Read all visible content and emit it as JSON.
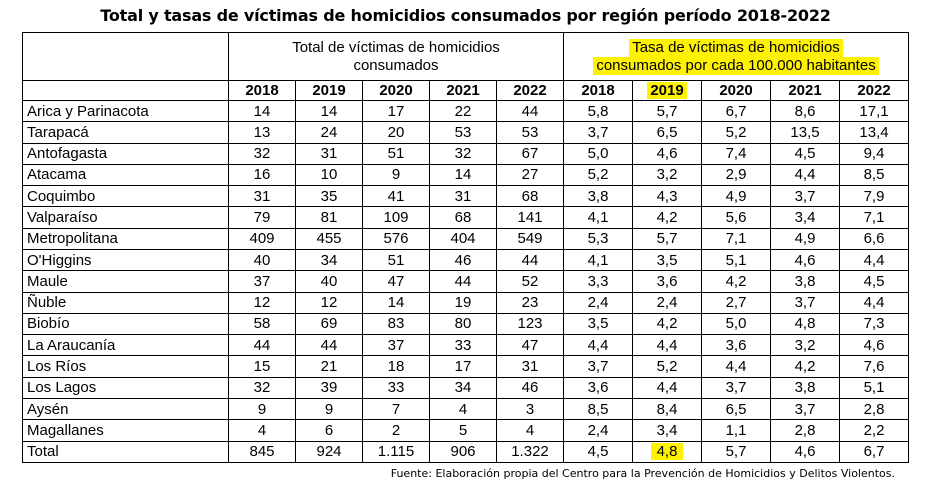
{
  "title": "Total y tasas de víctimas de homicidios consumados por región período 2018-2022",
  "group_totals": [
    "Total de víctimas de homicidios",
    "consumados"
  ],
  "group_rates": [
    "Tasa de víctimas de homicidios",
    "consumados por cada 100.000 habitantes"
  ],
  "years": [
    "2018",
    "2019",
    "2020",
    "2021",
    "2022"
  ],
  "rows": [
    {
      "region": "Arica y Parinacota",
      "totals": [
        "14",
        "14",
        "17",
        "22",
        "44"
      ],
      "rates": [
        "5,8",
        "5,7",
        "6,7",
        "8,6",
        "17,1"
      ]
    },
    {
      "region": "Tarapacá",
      "totals": [
        "13",
        "24",
        "20",
        "53",
        "53"
      ],
      "rates": [
        "3,7",
        "6,5",
        "5,2",
        "13,5",
        "13,4"
      ]
    },
    {
      "region": "Antofagasta",
      "totals": [
        "32",
        "31",
        "51",
        "32",
        "67"
      ],
      "rates": [
        "5,0",
        "4,6",
        "7,4",
        "4,5",
        "9,4"
      ]
    },
    {
      "region": "Atacama",
      "totals": [
        "16",
        "10",
        "9",
        "14",
        "27"
      ],
      "rates": [
        "5,2",
        "3,2",
        "2,9",
        "4,4",
        "8,5"
      ]
    },
    {
      "region": "Coquimbo",
      "totals": [
        "31",
        "35",
        "41",
        "31",
        "68"
      ],
      "rates": [
        "3,8",
        "4,3",
        "4,9",
        "3,7",
        "7,9"
      ]
    },
    {
      "region": "Valparaíso",
      "totals": [
        "79",
        "81",
        "109",
        "68",
        "141"
      ],
      "rates": [
        "4,1",
        "4,2",
        "5,6",
        "3,4",
        "7,1"
      ]
    },
    {
      "region": "Metropolitana",
      "totals": [
        "409",
        "455",
        "576",
        "404",
        "549"
      ],
      "rates": [
        "5,3",
        "5,7",
        "7,1",
        "4,9",
        "6,6"
      ]
    },
    {
      "region": "O'Higgins",
      "totals": [
        "40",
        "34",
        "51",
        "46",
        "44"
      ],
      "rates": [
        "4,1",
        "3,5",
        "5,1",
        "4,6",
        "4,4"
      ]
    },
    {
      "region": "Maule",
      "totals": [
        "37",
        "40",
        "47",
        "44",
        "52"
      ],
      "rates": [
        "3,3",
        "3,6",
        "4,2",
        "3,8",
        "4,5"
      ]
    },
    {
      "region": "Ñuble",
      "totals": [
        "12",
        "12",
        "14",
        "19",
        "23"
      ],
      "rates": [
        "2,4",
        "2,4",
        "2,7",
        "3,7",
        "4,4"
      ]
    },
    {
      "region": "Biobío",
      "totals": [
        "58",
        "69",
        "83",
        "80",
        "123"
      ],
      "rates": [
        "3,5",
        "4,2",
        "5,0",
        "4,8",
        "7,3"
      ]
    },
    {
      "region": "La Araucanía",
      "totals": [
        "44",
        "44",
        "37",
        "33",
        "47"
      ],
      "rates": [
        "4,4",
        "4,4",
        "3,6",
        "3,2",
        "4,6"
      ]
    },
    {
      "region": "Los Ríos",
      "totals": [
        "15",
        "21",
        "18",
        "17",
        "31"
      ],
      "rates": [
        "3,7",
        "5,2",
        "4,4",
        "4,2",
        "7,6"
      ]
    },
    {
      "region": "Los Lagos",
      "totals": [
        "32",
        "39",
        "33",
        "34",
        "46"
      ],
      "rates": [
        "3,6",
        "4,4",
        "3,7",
        "3,8",
        "5,1"
      ]
    },
    {
      "region": "Aysén",
      "totals": [
        "9",
        "9",
        "7",
        "4",
        "3"
      ],
      "rates": [
        "8,5",
        "8,4",
        "6,5",
        "3,7",
        "2,8"
      ]
    },
    {
      "region": "Magallanes",
      "totals": [
        "4",
        "6",
        "2",
        "5",
        "4"
      ],
      "rates": [
        "2,4",
        "3,4",
        "1,1",
        "2,8",
        "2,2"
      ]
    },
    {
      "region": "Total",
      "totals": [
        "845",
        "924",
        "1.115",
        "906",
        "1.322"
      ],
      "rates": [
        "4,5",
        "4,8",
        "5,7",
        "4,6",
        "6,7"
      ]
    }
  ],
  "highlight_color": "#fff200",
  "footer": "Fuente: Elaboración propia del Centro para la Prevención de Homicidios y Delitos Violentos."
}
